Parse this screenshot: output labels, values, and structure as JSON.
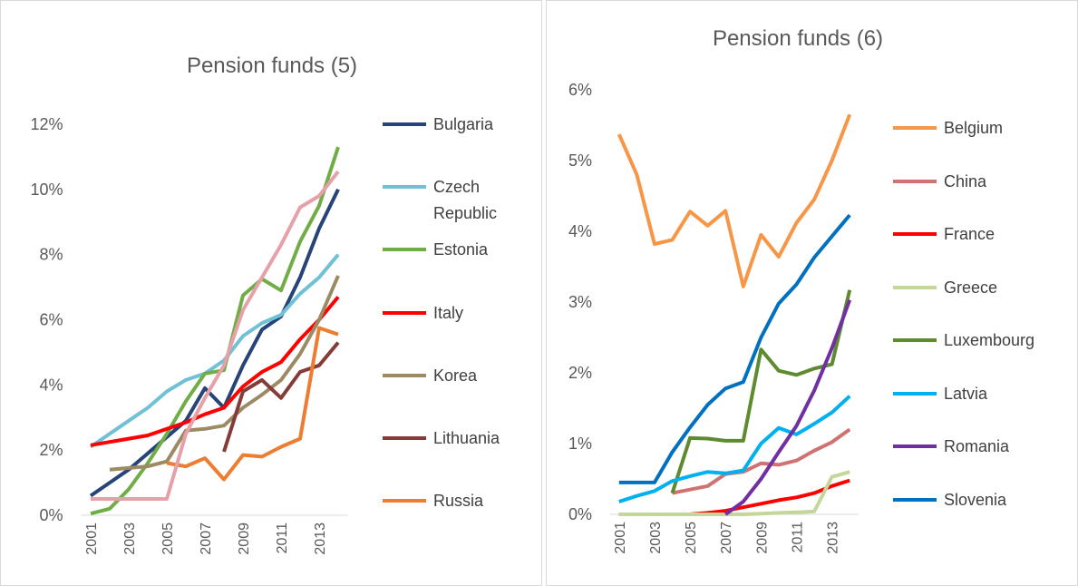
{
  "chart_data": [
    {
      "type": "line",
      "title": "Pension funds (5)",
      "categories": [
        "2001",
        null,
        "2003",
        null,
        "2005",
        null,
        "2007",
        null,
        "2009",
        null,
        "2011",
        null,
        "2013",
        null
      ],
      "ylim": [
        0,
        12
      ],
      "yticks": [
        {
          "value": 0,
          "label": "0%"
        },
        {
          "value": 2,
          "label": "2%"
        },
        {
          "value": 4,
          "label": "4%"
        },
        {
          "value": 6,
          "label": "6%"
        },
        {
          "value": 8,
          "label": "8%"
        },
        {
          "value": 10,
          "label": "10%"
        },
        {
          "value": 12,
          "label": "12%"
        }
      ],
      "grid": false,
      "series": [
        {
          "name": "Bulgaria",
          "color": "#264478",
          "values": [
            0.6,
            1.0,
            1.4,
            1.9,
            2.4,
            2.9,
            3.9,
            3.3,
            4.6,
            5.7,
            6.1,
            7.3,
            8.8,
            10.0
          ]
        },
        {
          "name": "Czech Republic",
          "color": "#70c1d6",
          "values": [
            2.1,
            2.5,
            2.9,
            3.3,
            3.8,
            4.15,
            4.35,
            4.75,
            5.5,
            5.9,
            6.15,
            6.8,
            7.3,
            8.0
          ]
        },
        {
          "name": "Estonia",
          "color": "#70ad47",
          "values": [
            0.05,
            0.2,
            0.8,
            1.6,
            2.5,
            3.5,
            4.35,
            4.45,
            6.75,
            7.25,
            6.9,
            8.4,
            9.5,
            11.3
          ]
        },
        {
          "name": "Italy",
          "color": "#ff0000",
          "values": [
            2.15,
            2.25,
            2.35,
            2.45,
            2.65,
            2.85,
            3.1,
            3.3,
            3.95,
            4.4,
            4.7,
            5.4,
            6.0,
            6.7
          ]
        },
        {
          "name": "Korea",
          "color": "#9c8a63",
          "values": [
            null,
            1.4,
            1.45,
            1.5,
            1.65,
            2.6,
            2.65,
            2.75,
            3.3,
            3.7,
            4.15,
            4.95,
            6.0,
            7.35
          ]
        },
        {
          "name": "Lithuania",
          "color": "#843c39",
          "values": [
            null,
            null,
            null,
            null,
            null,
            null,
            null,
            1.95,
            3.8,
            4.15,
            3.6,
            4.4,
            4.6,
            5.3
          ]
        },
        {
          "name": "Russia",
          "color": "#ed7d31",
          "values": [
            null,
            null,
            null,
            null,
            1.6,
            1.5,
            1.75,
            1.1,
            1.85,
            1.8,
            2.1,
            2.35,
            5.75,
            5.55
          ]
        },
        {
          "color": "#e6a0a8",
          "values": [
            0.5,
            0.5,
            0.5,
            0.5,
            0.5,
            2.5,
            3.6,
            4.6,
            6.3,
            7.3,
            8.3,
            9.45,
            9.8,
            10.55
          ]
        }
      ]
    },
    {
      "type": "line",
      "title": "Pension funds (6)",
      "categories": [
        "2001",
        null,
        "2003",
        null,
        "2005",
        null,
        "2007",
        null,
        "2009",
        null,
        "2011",
        null,
        "2013",
        null
      ],
      "ylim": [
        0,
        6
      ],
      "yticks": [
        {
          "value": 0,
          "label": "0%"
        },
        {
          "value": 1,
          "label": "1%"
        },
        {
          "value": 2,
          "label": "2%"
        },
        {
          "value": 3,
          "label": "3%"
        },
        {
          "value": 4,
          "label": "4%"
        },
        {
          "value": 5,
          "label": "5%"
        },
        {
          "value": 6,
          "label": "6%"
        }
      ],
      "grid": false,
      "series": [
        {
          "name": "Belgium",
          "color": "#f79646",
          "values": [
            5.37,
            4.8,
            3.82,
            3.88,
            4.28,
            4.08,
            4.29,
            3.22,
            3.95,
            3.64,
            4.12,
            4.45,
            5.0,
            5.65
          ]
        },
        {
          "name": "China",
          "color": "#d07272",
          "values": [
            null,
            null,
            null,
            0.3,
            0.35,
            0.4,
            0.57,
            0.6,
            0.72,
            0.7,
            0.76,
            0.9,
            1.02,
            1.2
          ]
        },
        {
          "name": "France",
          "color": "#ff0000",
          "values": [
            0,
            0,
            0,
            0,
            0,
            0.02,
            0.05,
            0.1,
            0.15,
            0.2,
            0.24,
            0.3,
            0.4,
            0.48
          ]
        },
        {
          "name": "Greece",
          "color": "#c4d79b",
          "values": [
            0,
            0,
            0,
            0,
            0,
            0,
            0,
            0,
            0.01,
            0.02,
            0.03,
            0.04,
            0.53,
            0.6
          ]
        },
        {
          "name": "Luxembourg",
          "color": "#5f8b30",
          "values": [
            null,
            null,
            null,
            0.3,
            1.08,
            1.07,
            1.04,
            1.04,
            2.33,
            2.03,
            1.97,
            2.06,
            2.12,
            3.17
          ]
        },
        {
          "name": "Latvia",
          "color": "#00b0f0",
          "values": [
            0.18,
            0.26,
            0.33,
            0.47,
            0.54,
            0.6,
            0.58,
            0.62,
            1.0,
            1.22,
            1.13,
            1.28,
            1.44,
            1.67
          ]
        },
        {
          "name": "Romania",
          "color": "#7030a0",
          "values": [
            null,
            null,
            null,
            null,
            null,
            null,
            0,
            0.18,
            0.5,
            0.88,
            1.25,
            1.75,
            2.35,
            3.03
          ]
        },
        {
          "name": "Slovenia",
          "color": "#0070c0",
          "values": [
            0.45,
            0.45,
            0.45,
            0.88,
            1.23,
            1.55,
            1.78,
            1.87,
            2.5,
            2.98,
            3.25,
            3.63,
            3.93,
            4.23
          ]
        }
      ]
    }
  ]
}
